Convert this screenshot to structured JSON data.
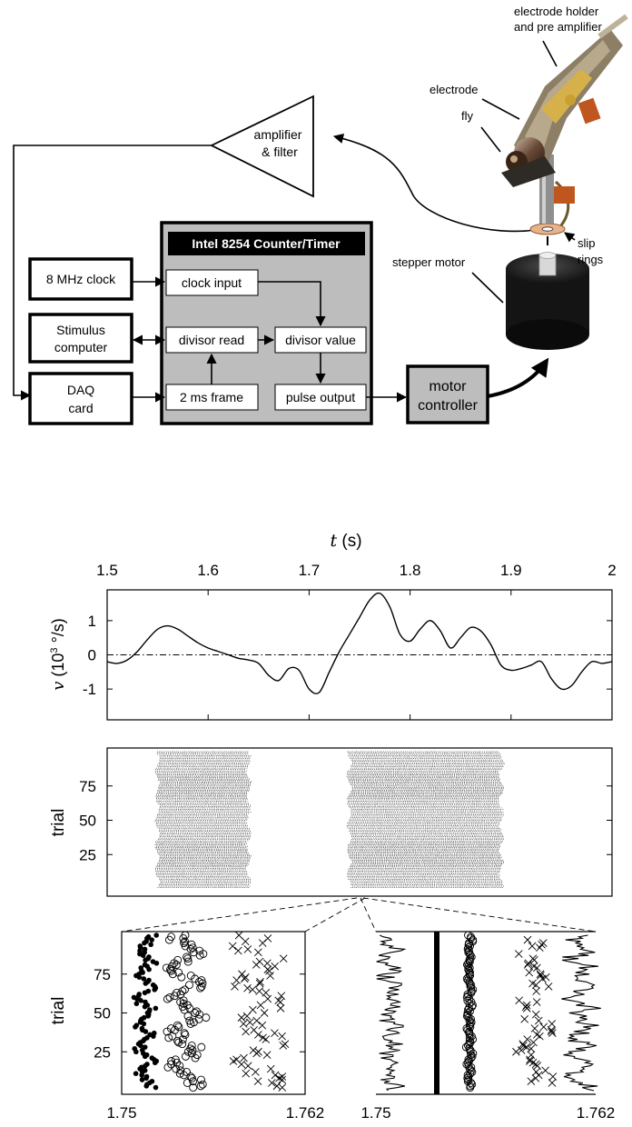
{
  "diagram": {
    "amplifier_label_1": "amplifier",
    "amplifier_label_2": "& filter",
    "clock_label": "8 MHz clock",
    "stimulus_label_1": "Stimulus",
    "stimulus_label_2": "computer",
    "daq_label_1": "DAQ",
    "daq_label_2": "card",
    "timer_title": "Intel 8254 Counter/Timer",
    "clock_input": "clock input",
    "divisor_read": "divisor read",
    "divisor_value": "divisor value",
    "frame_label": "2 ms frame",
    "pulse_output": "pulse output",
    "motor_controller_1": "motor",
    "motor_controller_2": "controller",
    "stepper_motor": "stepper motor",
    "slip_rings_1": "slip",
    "slip_rings_2": "rings",
    "electrode_holder_1": "electrode holder",
    "electrode_holder_2": "and pre amplifier",
    "electrode": "electrode",
    "fly": "fly"
  },
  "chart_data": [
    {
      "type": "line",
      "xlabel_var": "t",
      "xlabel_unit": "(s)",
      "ylabel_var": "v",
      "ylabel_unit_pre": "(10",
      "ylabel_unit_exp": "3",
      "ylabel_unit_post": " °/s)",
      "xlim": [
        1.5,
        2.0
      ],
      "ylim": [
        -1.9,
        1.9
      ],
      "x_ticks": [
        "1.5",
        "1.6",
        "1.7",
        "1.8",
        "1.9",
        "2"
      ],
      "y_ticks": [
        "1",
        "0",
        "-1"
      ],
      "x": [
        1.5,
        1.51,
        1.52,
        1.53,
        1.54,
        1.55,
        1.56,
        1.57,
        1.58,
        1.59,
        1.6,
        1.61,
        1.62,
        1.63,
        1.64,
        1.65,
        1.66,
        1.67,
        1.68,
        1.69,
        1.7,
        1.71,
        1.72,
        1.73,
        1.74,
        1.75,
        1.76,
        1.77,
        1.78,
        1.79,
        1.8,
        1.81,
        1.82,
        1.83,
        1.84,
        1.85,
        1.86,
        1.87,
        1.88,
        1.89,
        1.9,
        1.91,
        1.92,
        1.93,
        1.94,
        1.95,
        1.96,
        1.97,
        1.98,
        1.99,
        2.0
      ],
      "y": [
        -0.2,
        -0.25,
        -0.15,
        0.1,
        0.45,
        0.75,
        0.85,
        0.75,
        0.55,
        0.35,
        0.2,
        0.1,
        0.0,
        -0.1,
        -0.15,
        -0.25,
        -0.6,
        -0.75,
        -0.4,
        -0.45,
        -1.0,
        -1.1,
        -0.5,
        0.1,
        0.6,
        1.1,
        1.6,
        1.8,
        1.4,
        0.6,
        0.4,
        0.75,
        1.0,
        0.7,
        0.2,
        0.5,
        0.8,
        0.7,
        0.3,
        -0.3,
        -0.45,
        -0.4,
        -0.3,
        -0.2,
        -0.7,
        -1.0,
        -0.9,
        -0.5,
        -0.2,
        -0.25,
        -0.2
      ],
      "reference_line": 0
    },
    {
      "type": "scatter",
      "ylabel": "trial",
      "xlim": [
        1.5,
        2.0
      ],
      "y_ticks": [
        "25",
        "50",
        "75"
      ],
      "trials": 100,
      "bands": [
        [
          1.55,
          1.64
        ],
        [
          1.74,
          1.89
        ]
      ]
    },
    {
      "type": "scatter",
      "ylabel": "trial",
      "xlim": [
        1.75,
        1.762
      ],
      "x_ticks": [
        "1.75",
        "1.762"
      ],
      "y_ticks": [
        "25",
        "50",
        "75"
      ],
      "series": [
        "dots",
        "circles",
        "crosses"
      ]
    },
    {
      "type": "line",
      "xlim": [
        1.75,
        1.762
      ],
      "x_ticks": [
        "1.75",
        "1.762"
      ],
      "series": [
        "jagged-left",
        "thick-bar",
        "circles",
        "crosses",
        "jagged-right"
      ]
    }
  ]
}
